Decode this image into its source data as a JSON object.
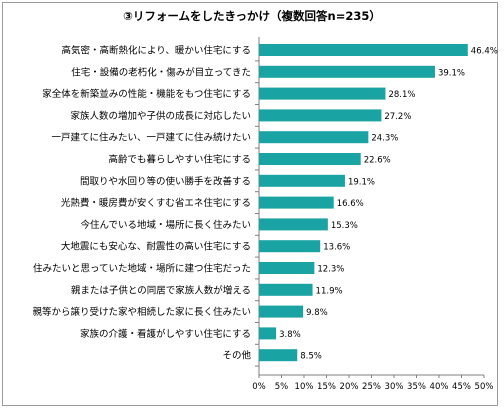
{
  "chart_data": {
    "type": "bar",
    "orientation": "horizontal",
    "title": "③リフォームをしたきっかけ（複数回答n=235）",
    "categories": [
      "高気密・高断熱化により、暖かい住宅にする",
      "住宅・設備の老朽化・傷みが目立ってきた",
      "家全体を新築並みの性能・機能をもつ住宅にする",
      "家族人数の増加や子供の成長に対応したい",
      "一戸建てに住みたい、一戸建てに住み続けたい",
      "高齢でも暮らしやすい住宅にする",
      "間取りや水回り等の使い勝手を改善する",
      "光熱費・暖房費が安くすむ省エネ住宅にする",
      "今住んでいる地域・場所に長く住みたい",
      "大地震にも安心な、耐震性の高い住宅にする",
      "住みたいと思っていた地域・場所に建つ住宅だった",
      "親または子供との同居で家族人数が増える",
      "親等から譲り受けた家や相続した家に長く住みたい",
      "家族の介護・看護がしやすい住宅にする",
      "その他"
    ],
    "values": [
      46.4,
      39.1,
      28.1,
      27.2,
      24.3,
      22.6,
      19.1,
      16.6,
      15.3,
      13.6,
      12.3,
      11.9,
      9.8,
      3.8,
      8.5
    ],
    "value_labels": [
      "46.4%",
      "39.1%",
      "28.1%",
      "27.2%",
      "24.3%",
      "22.6%",
      "19.1%",
      "16.6%",
      "15.3%",
      "13.6%",
      "12.3%",
      "11.9%",
      "9.8%",
      "3.8%",
      "8.5%"
    ],
    "x_ticks": [
      "0%",
      "5%",
      "10%",
      "15%",
      "20%",
      "25%",
      "30%",
      "35%",
      "40%",
      "45%",
      "50%"
    ],
    "xlim": [
      0,
      50
    ],
    "bar_color": "#1aa3a3",
    "grid": false,
    "legend": "none"
  }
}
